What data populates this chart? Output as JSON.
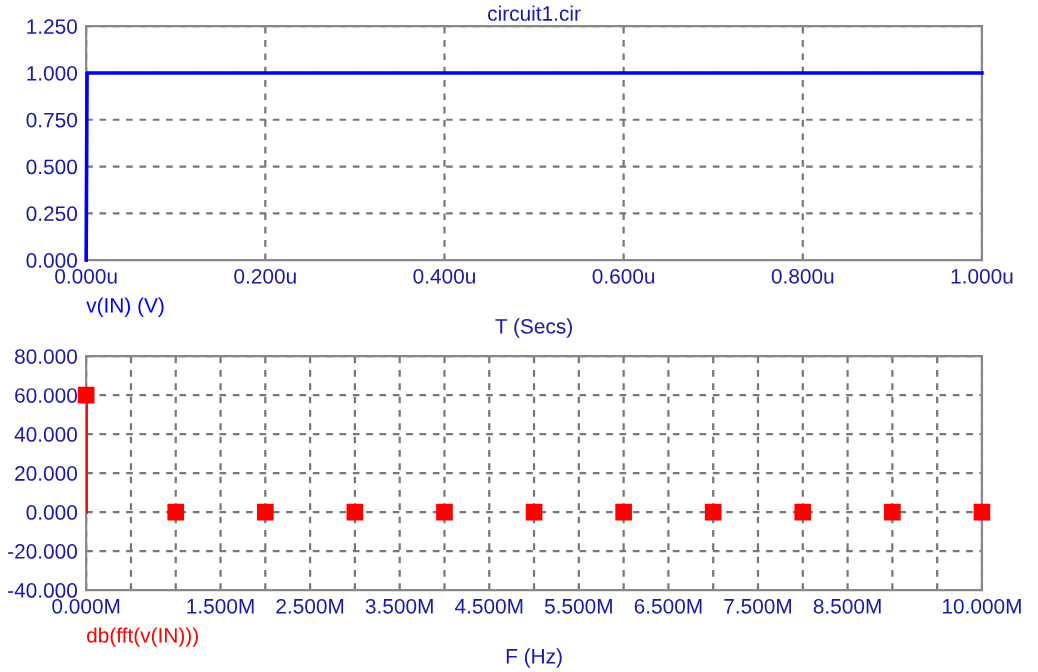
{
  "chart_data": [
    {
      "type": "line",
      "title": "circuit1.cir",
      "xlabel": "T (Secs)",
      "series": [
        {
          "name": "v(IN) (V)",
          "color": "#0000ff",
          "x": [
            0,
            0.001,
            1
          ],
          "values": [
            0,
            1,
            1
          ]
        }
      ],
      "xlim": [
        0,
        1
      ],
      "xticks": [
        {
          "value": 0,
          "label": "0.000u"
        },
        {
          "value": 0.2,
          "label": "0.200u"
        },
        {
          "value": 0.4,
          "label": "0.400u"
        },
        {
          "value": 0.6,
          "label": "0.600u"
        },
        {
          "value": 0.8,
          "label": "0.800u"
        },
        {
          "value": 1,
          "label": "1.000u"
        }
      ],
      "ylim": [
        0,
        1.25
      ],
      "yticks": [
        {
          "value": 0,
          "label": "0.000"
        },
        {
          "value": 0.25,
          "label": "0.250"
        },
        {
          "value": 0.5,
          "label": "0.500"
        },
        {
          "value": 0.75,
          "label": "0.750"
        },
        {
          "value": 1,
          "label": "1.000"
        },
        {
          "value": 1.25,
          "label": "1.250"
        }
      ],
      "grid": true,
      "marker": "none",
      "line_style": "solid"
    },
    {
      "type": "lollipop",
      "xlabel": "F (Hz)",
      "series": [
        {
          "name": "db(fft(v(IN)))",
          "color": "#ff0000",
          "x": [
            0,
            1,
            2,
            3,
            4,
            5,
            6,
            7,
            8,
            9,
            10
          ],
          "values": [
            60,
            0,
            0,
            0,
            0,
            0,
            0,
            0,
            0,
            0,
            0
          ]
        }
      ],
      "xlim": [
        0,
        10
      ],
      "xticks": [
        {
          "value": 0,
          "label": "0.000M"
        },
        {
          "value": 0.5,
          "label": null
        },
        {
          "value": 1,
          "label": null
        },
        {
          "value": 1.5,
          "label": "1.500M"
        },
        {
          "value": 2,
          "label": null
        },
        {
          "value": 2.5,
          "label": "2.500M"
        },
        {
          "value": 3,
          "label": null
        },
        {
          "value": 3.5,
          "label": "3.500M"
        },
        {
          "value": 4,
          "label": null
        },
        {
          "value": 4.5,
          "label": "4.500M"
        },
        {
          "value": 5,
          "label": null
        },
        {
          "value": 5.5,
          "label": "5.500M"
        },
        {
          "value": 6,
          "label": null
        },
        {
          "value": 6.5,
          "label": "6.500M"
        },
        {
          "value": 7,
          "label": null
        },
        {
          "value": 7.5,
          "label": "7.500M"
        },
        {
          "value": 8,
          "label": null
        },
        {
          "value": 8.5,
          "label": "8.500M"
        },
        {
          "value": 9,
          "label": null
        },
        {
          "value": 9.5,
          "label": null
        },
        {
          "value": 10,
          "label": "10.000M"
        }
      ],
      "ylim": [
        -40,
        80
      ],
      "yticks": [
        {
          "value": -40,
          "label": "-40.000"
        },
        {
          "value": -20,
          "label": "-20.000"
        },
        {
          "value": 0,
          "label": "0.000"
        },
        {
          "value": 20,
          "label": "20.000"
        },
        {
          "value": 40,
          "label": "40.000"
        },
        {
          "value": 60,
          "label": "60.000"
        },
        {
          "value": 80,
          "label": "80.000"
        }
      ],
      "grid": true,
      "marker": "square"
    }
  ]
}
